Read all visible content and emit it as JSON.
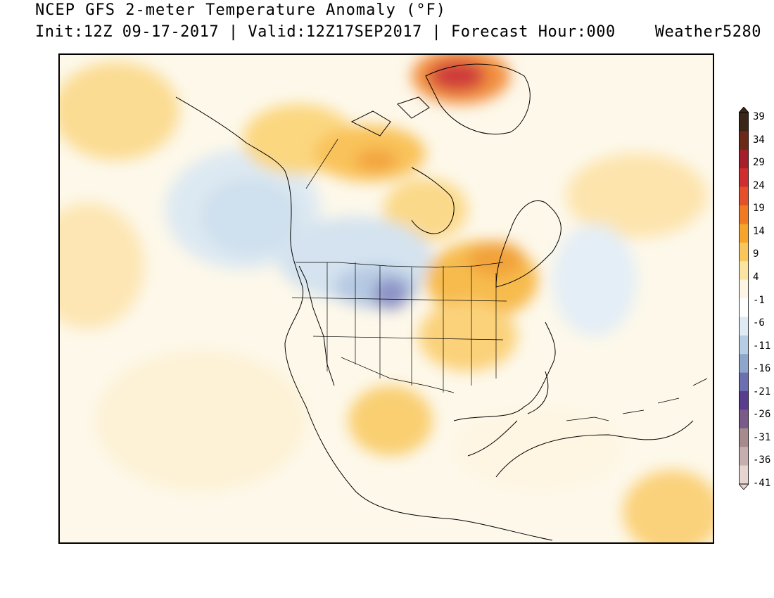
{
  "header": {
    "title": "NCEP GFS 2-meter Temperature Anomaly (°F)",
    "subtitle": "Init:12Z 09-17-2017 | Valid:12Z17SEP2017 | Forecast Hour:000",
    "brand": "Weather5280"
  },
  "map": {
    "region": "North America",
    "variable": "2-meter Temperature Anomaly"
  },
  "colorbar": {
    "labels": [
      "39",
      "34",
      "29",
      "24",
      "19",
      "14",
      "9",
      "4",
      "-1",
      "-6",
      "-11",
      "-16",
      "-21",
      "-26",
      "-31",
      "-36",
      "-41"
    ],
    "colors": [
      "#3b2418",
      "#6b2a17",
      "#a51f2a",
      "#cf2e2e",
      "#e3502a",
      "#f07a22",
      "#f5a52b",
      "#f8c65a",
      "#fbe3a2",
      "#fdf6e4",
      "#ffffff",
      "#dfeaf3",
      "#b7cde3",
      "#8fa6cc",
      "#6c6fb0",
      "#5a3e8e",
      "#7a5a88",
      "#a58a8e",
      "#c6aeae",
      "#e6d4d0"
    ]
  }
}
